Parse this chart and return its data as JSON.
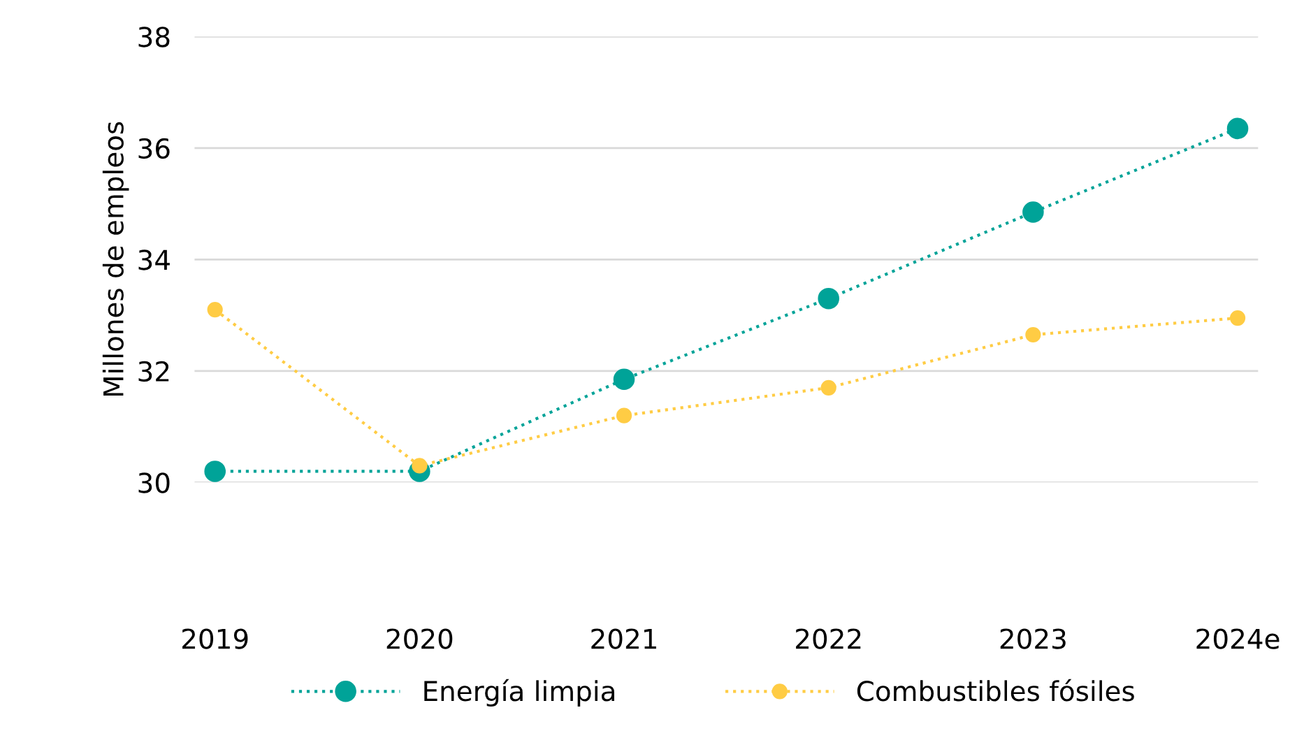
{
  "chart_data": {
    "type": "line",
    "ylabel": "Millones de empleos",
    "categories": [
      "2019",
      "2020",
      "2021",
      "2022",
      "2023",
      "2024e"
    ],
    "series": [
      {
        "name": "Energía limpia",
        "color": "#00a398",
        "values": [
          30.2,
          30.2,
          31.85,
          33.3,
          34.85,
          36.35
        ]
      },
      {
        "name": "Combustibles fósiles",
        "color": "#ffcc44",
        "values": [
          33.1,
          30.3,
          31.2,
          31.7,
          32.65,
          32.95
        ]
      }
    ],
    "ylim": [
      30,
      38
    ],
    "yticks": [
      30,
      32,
      34,
      36,
      38
    ],
    "grid": "y",
    "legend": "bottom",
    "marker": "circle",
    "line_style": "dotted"
  }
}
